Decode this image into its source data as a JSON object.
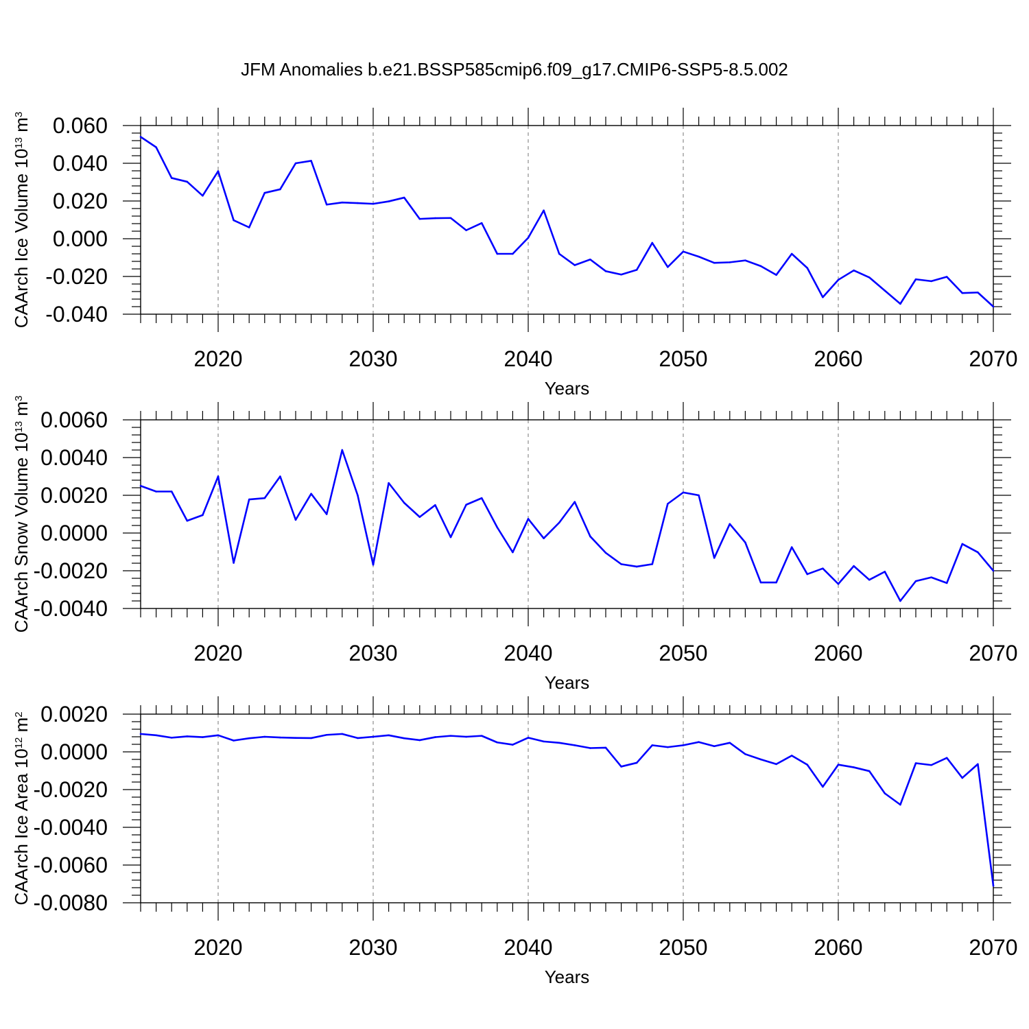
{
  "chart_data": {
    "type": "line",
    "title": "JFM Anomalies b.e21.BSSP585cmip6.f09_g17.CMIP6-SSP5-8.5.002",
    "line_color": "#0000ff",
    "panels": [
      {
        "name": "ice-volume",
        "ylabel": "CAArch Ice Volume 10",
        "ylabel_exp": "13",
        "ylabel_unit": " m",
        "ylabel_unit_exp": "3",
        "xlabel": "Years",
        "xlim": [
          2015,
          2070
        ],
        "ylim": [
          -0.04,
          0.06
        ],
        "yticks": [
          0.06,
          0.04,
          0.02,
          0.0,
          -0.02,
          -0.04
        ],
        "ytick_labels": [
          "0.060",
          "0.040",
          "0.020",
          "0.000",
          "-0.020",
          "-0.040"
        ],
        "xticks": [
          2020,
          2030,
          2040,
          2050,
          2060,
          2070
        ],
        "xtick_labels": [
          "2020",
          "2030",
          "2040",
          "2050",
          "2060",
          "2070"
        ],
        "series": [
          {
            "name": "CAArch Ice Volume",
            "x": [
              2015,
              2016,
              2017,
              2018,
              2019,
              2020,
              2021,
              2022,
              2023,
              2024,
              2025,
              2026,
              2027,
              2028,
              2029,
              2030,
              2031,
              2032,
              2033,
              2034,
              2035,
              2036,
              2037,
              2038,
              2039,
              2040,
              2041,
              2042,
              2043,
              2044,
              2045,
              2046,
              2047,
              2048,
              2049,
              2050,
              2051,
              2052,
              2053,
              2054,
              2055,
              2056,
              2057,
              2058,
              2059,
              2060,
              2061,
              2062,
              2063,
              2064,
              2065,
              2066,
              2067,
              2068,
              2069,
              2070
            ],
            "values": [
              0.054,
              0.0485,
              0.0322,
              0.0302,
              0.0228,
              0.0358,
              0.0098,
              0.006,
              0.0243,
              0.0262,
              0.04,
              0.0413,
              0.0181,
              0.0192,
              0.0189,
              0.0185,
              0.0198,
              0.0218,
              0.0105,
              0.0109,
              0.011,
              0.0045,
              0.0083,
              -0.008,
              -0.008,
              0.0005,
              0.015,
              -0.008,
              -0.014,
              -0.011,
              -0.0172,
              -0.019,
              -0.0165,
              -0.0022,
              -0.015,
              -0.0068,
              -0.0095,
              -0.0128,
              -0.0125,
              -0.0115,
              -0.0145,
              -0.0192,
              -0.008,
              -0.0155,
              -0.031,
              -0.0218,
              -0.0168,
              -0.0205,
              -0.0275,
              -0.0345,
              -0.0215,
              -0.0225,
              -0.0202,
              -0.0288,
              -0.0285,
              -0.036
            ]
          }
        ]
      },
      {
        "name": "snow-volume",
        "ylabel": "CAArch Snow Volume 10",
        "ylabel_exp": "13",
        "ylabel_unit": " m",
        "ylabel_unit_exp": "3",
        "xlabel": "Years",
        "xlim": [
          2015,
          2070
        ],
        "ylim": [
          -0.004,
          0.006
        ],
        "yticks": [
          0.006,
          0.004,
          0.002,
          0.0,
          -0.002,
          -0.004
        ],
        "ytick_labels": [
          "0.0060",
          "0.0040",
          "0.0020",
          "0.0000",
          "-0.0020",
          "-0.0040"
        ],
        "xticks": [
          2020,
          2030,
          2040,
          2050,
          2060,
          2070
        ],
        "xtick_labels": [
          "2020",
          "2030",
          "2040",
          "2050",
          "2060",
          "2070"
        ],
        "series": [
          {
            "name": "CAArch Snow Volume",
            "x": [
              2015,
              2016,
              2017,
              2018,
              2019,
              2020,
              2021,
              2022,
              2023,
              2024,
              2025,
              2026,
              2027,
              2028,
              2029,
              2030,
              2031,
              2032,
              2033,
              2034,
              2035,
              2036,
              2037,
              2038,
              2039,
              2040,
              2041,
              2042,
              2043,
              2044,
              2045,
              2046,
              2047,
              2048,
              2049,
              2050,
              2051,
              2052,
              2053,
              2054,
              2055,
              2056,
              2057,
              2058,
              2059,
              2060,
              2061,
              2062,
              2063,
              2064,
              2065,
              2066,
              2067,
              2068,
              2069,
              2070
            ],
            "values": [
              0.0025,
              0.0022,
              0.0022,
              0.00065,
              0.00095,
              0.003,
              -0.00158,
              0.00178,
              0.00185,
              0.003,
              0.0007,
              0.00208,
              0.001,
              0.0044,
              0.002,
              -0.00168,
              0.00265,
              0.0016,
              0.00085,
              0.00148,
              -0.00022,
              0.0015,
              0.00185,
              0.0003,
              -0.00102,
              0.00075,
              -0.00028,
              0.00055,
              0.00165,
              -0.00018,
              -0.00105,
              -0.00165,
              -0.00178,
              -0.00165,
              0.00155,
              0.00215,
              0.002,
              -0.00132,
              0.00048,
              -0.0005,
              -0.00262,
              -0.00262,
              -0.00075,
              -0.00218,
              -0.00188,
              -0.0027,
              -0.00175,
              -0.00248,
              -0.00205,
              -0.0036,
              -0.00255,
              -0.00235,
              -0.00265,
              -0.00058,
              -0.00102,
              -0.002
            ]
          }
        ]
      },
      {
        "name": "ice-area",
        "ylabel": "CAArch Ice Area 10",
        "ylabel_exp": "12",
        "ylabel_unit": " m",
        "ylabel_unit_exp": "2",
        "xlabel": "Years",
        "xlim": [
          2015,
          2070
        ],
        "ylim": [
          -0.008,
          0.002
        ],
        "yticks": [
          0.002,
          0.0,
          -0.002,
          -0.004,
          -0.006,
          -0.008
        ],
        "ytick_labels": [
          "0.0020",
          "0.0000",
          "-0.0020",
          "-0.0040",
          "-0.0060",
          "-0.0080"
        ],
        "xticks": [
          2020,
          2030,
          2040,
          2050,
          2060,
          2070
        ],
        "xtick_labels": [
          "2020",
          "2030",
          "2040",
          "2050",
          "2060",
          "2070"
        ],
        "series": [
          {
            "name": "CAArch Ice Area",
            "x": [
              2015,
              2016,
              2017,
              2018,
              2019,
              2020,
              2021,
              2022,
              2023,
              2024,
              2025,
              2026,
              2027,
              2028,
              2029,
              2030,
              2031,
              2032,
              2033,
              2034,
              2035,
              2036,
              2037,
              2038,
              2039,
              2040,
              2041,
              2042,
              2043,
              2044,
              2045,
              2046,
              2047,
              2048,
              2049,
              2050,
              2051,
              2052,
              2053,
              2054,
              2055,
              2056,
              2057,
              2058,
              2059,
              2060,
              2061,
              2062,
              2063,
              2064,
              2065,
              2066,
              2067,
              2068,
              2069,
              2070
            ],
            "values": [
              0.00095,
              0.00088,
              0.00075,
              0.00082,
              0.00078,
              0.00088,
              0.0006,
              0.00072,
              0.0008,
              0.00076,
              0.00074,
              0.00073,
              0.0009,
              0.00095,
              0.00073,
              0.0008,
              0.00088,
              0.00072,
              0.00062,
              0.00078,
              0.00085,
              0.0008,
              0.00085,
              0.0005,
              0.00038,
              0.00075,
              0.00055,
              0.00048,
              0.00035,
              0.0002,
              0.00022,
              -0.00078,
              -0.00058,
              0.00035,
              0.00025,
              0.00035,
              0.00052,
              0.0003,
              0.00048,
              -0.00012,
              -0.0004,
              -0.00065,
              -0.0002,
              -0.00068,
              -0.00185,
              -0.00068,
              -0.00082,
              -0.00102,
              -0.0022,
              -0.0028,
              -0.0006,
              -0.0007,
              -0.00032,
              -0.00138,
              -0.00065,
              -0.0071
            ]
          }
        ]
      }
    ]
  }
}
